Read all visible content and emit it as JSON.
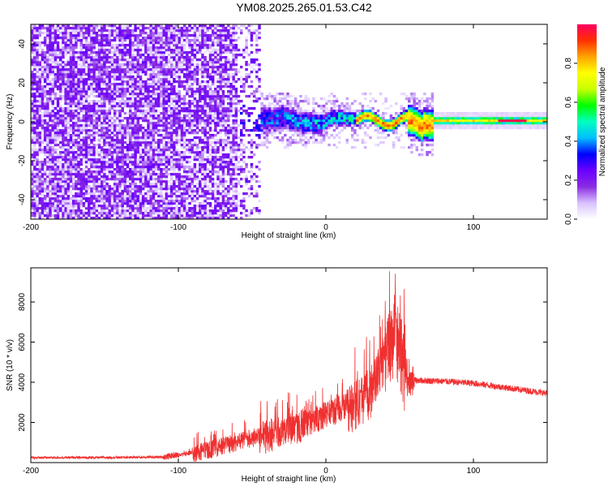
{
  "chart_data": [
    {
      "type": "heatmap",
      "title": "YM08.2025.265.01.53.C42",
      "xlabel": "Height of straight line (km)",
      "ylabel": "Frequency (Hz)",
      "xlim": [
        -200,
        150
      ],
      "ylim": [
        -50,
        50
      ],
      "xticks": [
        -200,
        -100,
        0,
        100
      ],
      "yticks": [
        -40,
        -20,
        0,
        20,
        40
      ],
      "colorbar": {
        "label": "Normalized spectral amplitude",
        "range": [
          0,
          1
        ],
        "ticks": [
          0.0,
          0.2,
          0.4,
          0.6,
          0.8
        ],
        "tick_labels": [
          "0.0",
          "0.2",
          "0.4",
          "0.6",
          "0.8"
        ],
        "colors": [
          "#ffffff",
          "#d9c2ff",
          "#8a2be2",
          "#6a00ff",
          "#0000ff",
          "#00bfff",
          "#00ffc0",
          "#00ff00",
          "#c8ff00",
          "#ffff00",
          "#ffa500",
          "#ff3000",
          "#ff0060"
        ]
      },
      "description_regions": [
        {
          "x_range": [
            -200,
            -60
          ],
          "freq_range": [
            -50,
            50
          ],
          "amplitude": 0.12,
          "pattern": "scattered noise"
        },
        {
          "x_range": [
            -60,
            20
          ],
          "freq_range": [
            -10,
            10
          ],
          "amplitude": 0.3,
          "pattern": "broadening band"
        },
        {
          "x_range": [
            20,
            72
          ],
          "freq_range": [
            -4,
            4
          ],
          "amplitude": 0.7,
          "pattern": "wavy narrow band"
        },
        {
          "x_range": [
            72,
            150
          ],
          "freq_range": [
            -2,
            2
          ],
          "amplitude": 0.55,
          "pattern": "narrow stable band"
        }
      ]
    },
    {
      "type": "line",
      "xlabel": "Height of straight line (km)",
      "ylabel": "SNR (10 * v/v)",
      "xlim": [
        -200,
        150
      ],
      "ylim": [
        0,
        9700
      ],
      "xticks": [
        -200,
        -100,
        0,
        100
      ],
      "yticks": [
        2000,
        4000,
        6000,
        8000
      ],
      "color": "#f03030",
      "series": [
        {
          "name": "SNR",
          "x": [
            -200,
            -150,
            -110,
            -95,
            -80,
            -70,
            -60,
            -50,
            -40,
            -30,
            -20,
            -10,
            0,
            10,
            20,
            30,
            40,
            45,
            50,
            55,
            60,
            80,
            100,
            120,
            150
          ],
          "y": [
            250,
            250,
            280,
            450,
            700,
            900,
            1100,
            1300,
            1450,
            1650,
            1900,
            2200,
            2500,
            2800,
            3100,
            3700,
            5500,
            6500,
            6000,
            4000,
            4100,
            4050,
            3950,
            3750,
            3450
          ]
        }
      ]
    }
  ]
}
